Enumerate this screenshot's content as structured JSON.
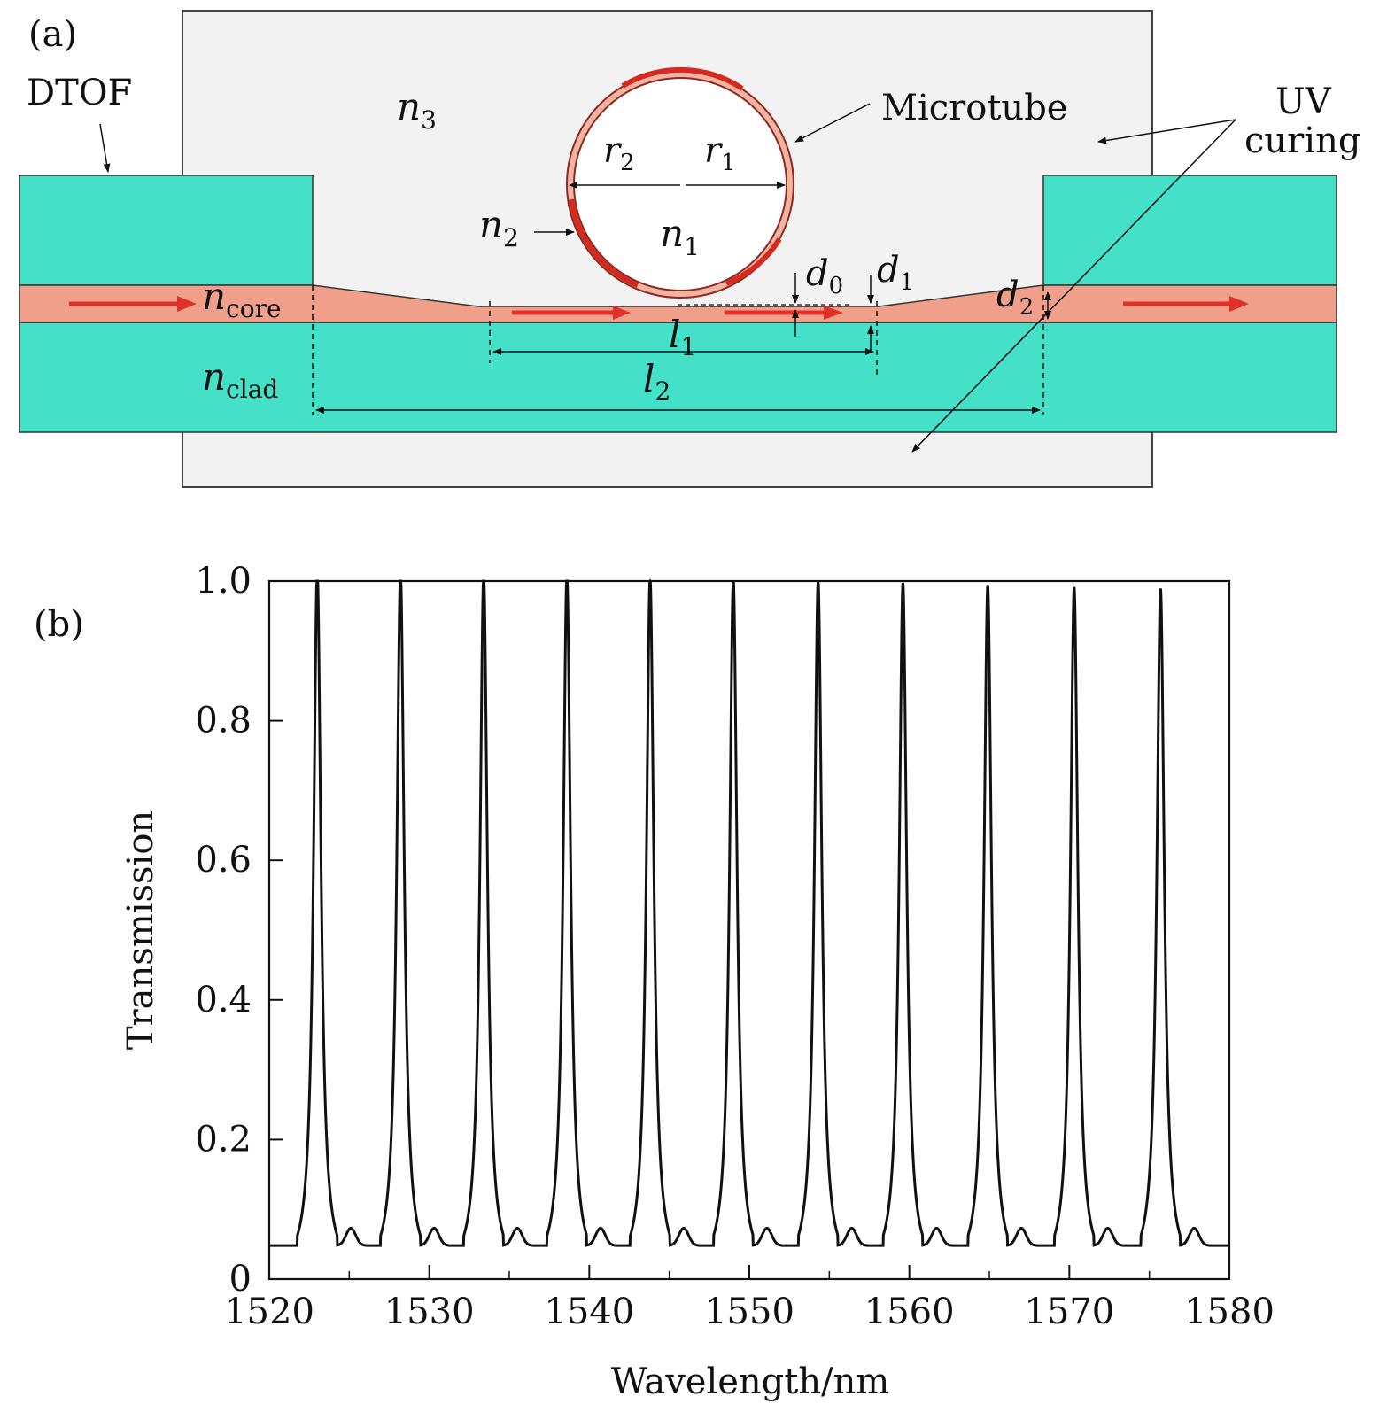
{
  "panel_a": {
    "label": "(a)",
    "dtof_label": "DTOF",
    "microtube_label": "Microtube",
    "uv_label_line1": "UV",
    "uv_label_line2": "curing",
    "n3": {
      "base": "n",
      "sub": "3"
    },
    "n2": {
      "base": "n",
      "sub": "2"
    },
    "n1": {
      "base": "n",
      "sub": "1"
    },
    "r2": {
      "base": "r",
      "sub": "2"
    },
    "r1": {
      "base": "r",
      "sub": "1"
    },
    "d0": {
      "base": "d",
      "sub": "0"
    },
    "d1": {
      "base": "d",
      "sub": "1"
    },
    "d2": {
      "base": "d",
      "sub": "2"
    },
    "l1": {
      "base": "l",
      "sub": "1"
    },
    "l2": {
      "base": "l",
      "sub": "2"
    },
    "ncore": {
      "base": "n",
      "sub": "core"
    },
    "nclad": {
      "base": "n",
      "sub": "clad"
    },
    "colors": {
      "cladding": "#45e0c8",
      "core": "#f0a08a",
      "uv_region": "#f2f2f2",
      "arrow": "#e0302a",
      "tube_ring": "#f2b3a3",
      "tube_highlight": "#d42a20"
    }
  },
  "panel_b": {
    "label": "(b)"
  },
  "chart_data": {
    "type": "line",
    "xlabel": "Wavelength/nm",
    "ylabel": "Transmission",
    "xlim": [
      1520,
      1580
    ],
    "ylim": [
      0,
      1.0
    ],
    "x_ticks": [
      1520,
      1530,
      1540,
      1550,
      1560,
      1570,
      1580
    ],
    "x_tick_labels": [
      "1520",
      "1530",
      "1540",
      "1550",
      "1560",
      "1570",
      "1580"
    ],
    "y_ticks": [
      0,
      0.2,
      0.4,
      0.6,
      0.8,
      1.0
    ],
    "y_tick_labels": [
      "0",
      "0.2",
      "0.4",
      "0.6",
      "0.8",
      "1.0"
    ],
    "grid": false,
    "baseline": 0.06,
    "series": [
      {
        "peaks_x": [
          1523.0,
          1528.2,
          1533.4,
          1538.6,
          1543.8,
          1549.0,
          1554.3,
          1559.6,
          1564.9,
          1570.3,
          1575.7
        ],
        "peaks_y": [
          1.0,
          0.999,
          0.996,
          0.994,
          0.99,
          0.988,
          0.986,
          0.983,
          0.98,
          0.977,
          0.975
        ],
        "color": "#111111"
      }
    ]
  }
}
